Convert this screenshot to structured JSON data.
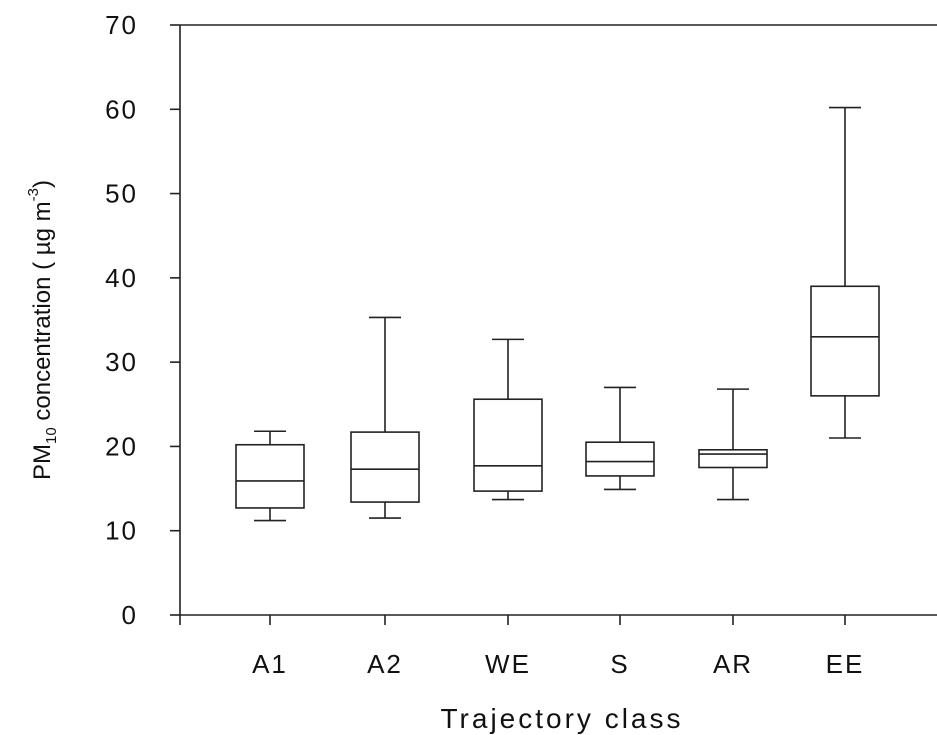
{
  "chart_data": {
    "type": "box",
    "title": "",
    "xlabel": "Trajectory class",
    "ylabel": {
      "prefix": "PM",
      "subscript": "10",
      "main": " concentration  ( µg m",
      "superscript": "-3",
      "suffix": ")"
    },
    "ylim": [
      0,
      70
    ],
    "yticks": [
      "0",
      "10",
      "20",
      "30",
      "40",
      "50",
      "60",
      "70"
    ],
    "grid": false,
    "categories": [
      "A1",
      "A2",
      "WE",
      "S",
      "AR",
      "EE"
    ],
    "boxes": [
      {
        "category": "A1",
        "whisker_low": 11.2,
        "q1": 12.7,
        "median": 15.9,
        "q3": 20.2,
        "whisker_high": 21.8
      },
      {
        "category": "A2",
        "whisker_low": 11.5,
        "q1": 13.4,
        "median": 17.3,
        "q3": 21.7,
        "whisker_high": 35.3
      },
      {
        "category": "WE",
        "whisker_low": 13.7,
        "q1": 14.7,
        "median": 17.7,
        "q3": 25.6,
        "whisker_high": 32.7
      },
      {
        "category": "S",
        "whisker_low": 14.9,
        "q1": 16.5,
        "median": 18.2,
        "q3": 20.5,
        "whisker_high": 27.0
      },
      {
        "category": "AR",
        "whisker_low": 13.7,
        "q1": 17.5,
        "median": 19.1,
        "q3": 19.6,
        "whisker_high": 26.8
      },
      {
        "category": "EE",
        "whisker_low": 21.0,
        "q1": 26.0,
        "median": 33.0,
        "q3": 39.0,
        "whisker_high": 60.2
      }
    ]
  }
}
